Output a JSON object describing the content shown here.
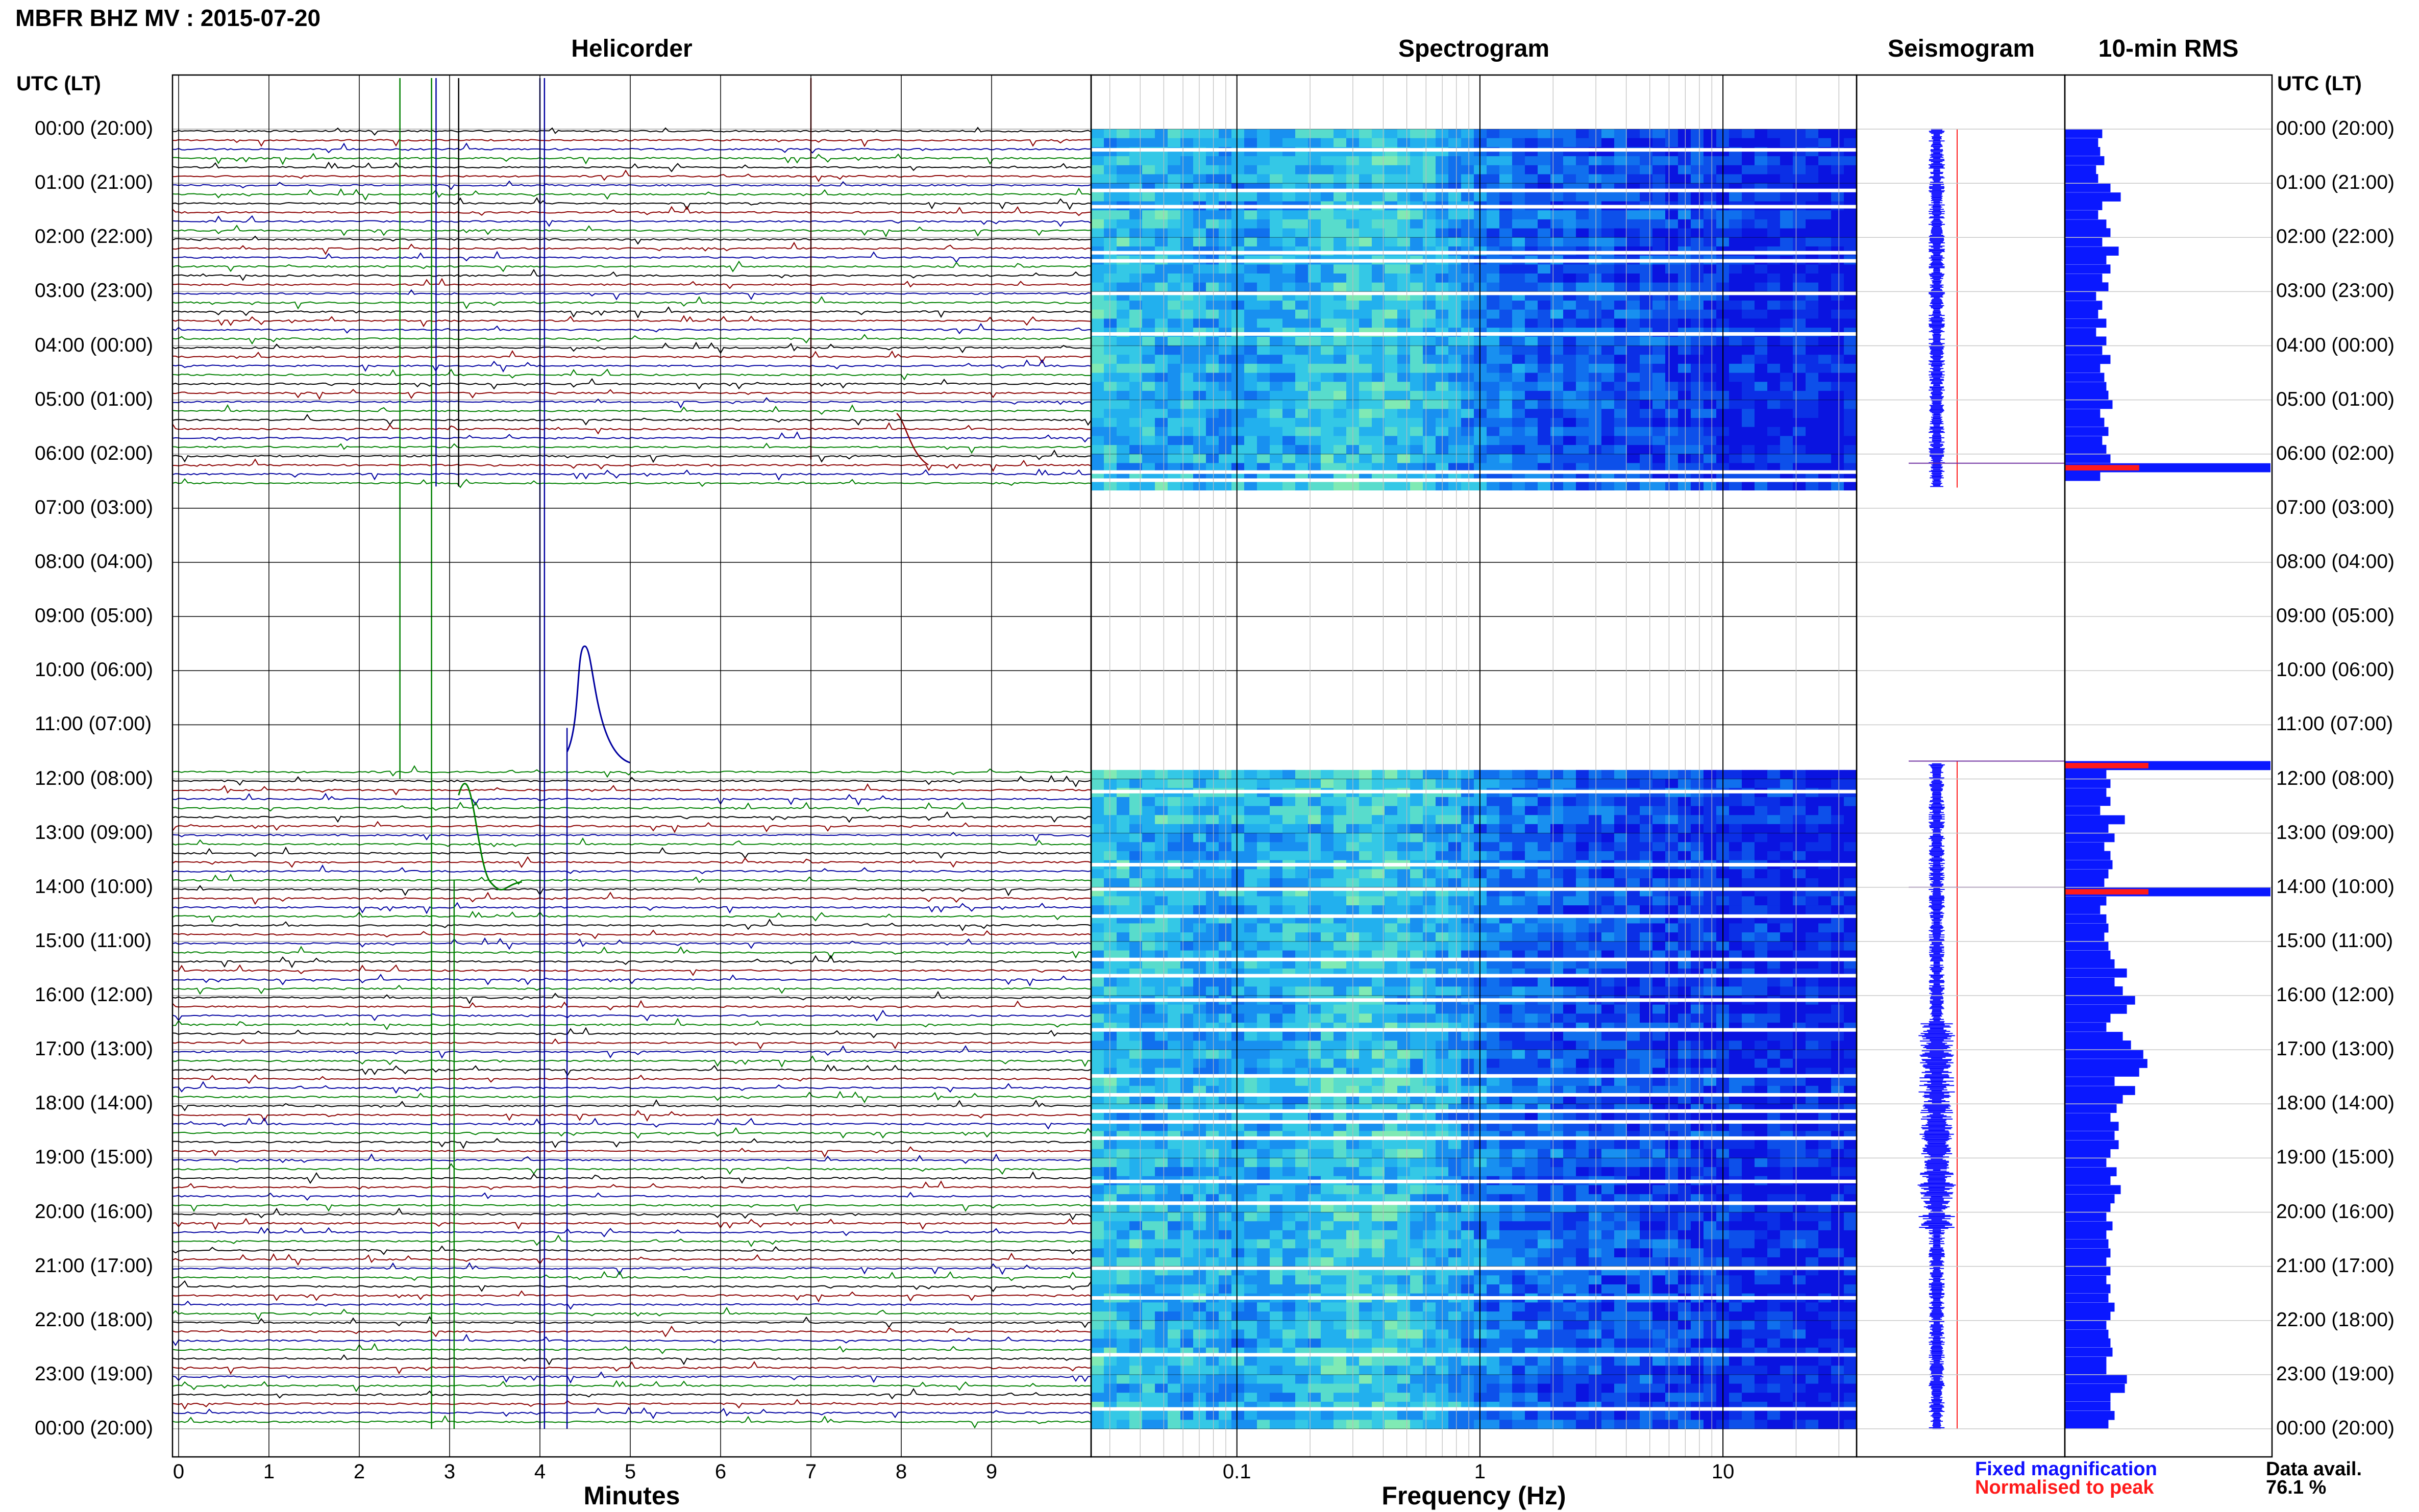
{
  "header": {
    "title": "MBFR BHZ MV : 2015-07-20",
    "utc_label_left": "UTC (LT)",
    "utc_label_right": "UTC (LT)"
  },
  "panels": {
    "helicorder": "Helicorder",
    "spectrogram": "Spectrogram",
    "seismogram": "Seismogram",
    "rms": "10-min RMS"
  },
  "time_labels": [
    "00:00 (20:00)",
    "01:00 (21:00)",
    "02:00 (22:00)",
    "03:00 (23:00)",
    "04:00 (00:00)",
    "05:00 (01:00)",
    "06:00 (02:00)",
    "07:00 (03:00)",
    "08:00 (04:00)",
    "09:00 (05:00)",
    "10:00 (06:00)",
    "11:00 (07:00)",
    "12:00 (08:00)",
    "13:00 (09:00)",
    "14:00 (10:00)",
    "15:00 (11:00)",
    "16:00 (12:00)",
    "17:00 (13:00)",
    "18:00 (14:00)",
    "19:00 (15:00)",
    "20:00 (16:00)",
    "21:00 (17:00)",
    "22:00 (18:00)",
    "23:00 (19:00)",
    "00:00 (20:00)"
  ],
  "helicorder_axis": {
    "label": "Minutes",
    "ticks": [
      "0",
      "1",
      "2",
      "3",
      "4",
      "5",
      "6",
      "7",
      "8",
      "9"
    ]
  },
  "spectrogram_axis": {
    "label": "Frequency (Hz)",
    "ticks": [
      "0.1",
      "1",
      "10"
    ],
    "scale": "log"
  },
  "legend": {
    "fixed": "Fixed magnification",
    "normalised": "Normalised to peak",
    "fixed_color": "#1010ff",
    "normalised_color": "#ff1a1a"
  },
  "availability": {
    "label": "Data avail.",
    "value": "76.1 %"
  },
  "colors": {
    "trace_cycle": [
      "#000000",
      "#8b0000",
      "#0000a0",
      "#008000"
    ],
    "rms_bar": "#0a18ff",
    "rms_peak": "#ff1a1a"
  },
  "chart_data": [
    {
      "type": "line",
      "title": "Helicorder",
      "xlabel": "Minutes",
      "xlim": [
        0,
        10
      ],
      "ylabel": "UTC (LT)",
      "ylim": [
        "00:00",
        "24:00"
      ],
      "data_gap_hours": [
        [
          6.6,
          11.7
        ]
      ]
    },
    {
      "type": "heatmap",
      "title": "Spectrogram",
      "xlabel": "Frequency (Hz)",
      "x_scale": "log",
      "data_gap_hours": [
        [
          6.6,
          11.7
        ]
      ]
    },
    {
      "type": "line",
      "title": "Seismogram",
      "data_gap_hours": [
        [
          6.6,
          11.7
        ]
      ]
    },
    {
      "type": "bar",
      "title": "10-min RMS",
      "orientation": "horizontal",
      "note_values_relative": true,
      "rms_hours": [
        0.0,
        0.17,
        0.33,
        0.5,
        0.67,
        0.83,
        1.0,
        1.17,
        1.33,
        1.5,
        1.67,
        1.83,
        2.0,
        2.17,
        2.33,
        2.5,
        2.67,
        2.83,
        3.0,
        3.17,
        3.33,
        3.5,
        3.67,
        3.83,
        4.0,
        4.17,
        4.33,
        4.5,
        4.67,
        4.83,
        5.0,
        5.17,
        5.33,
        5.5,
        5.67,
        5.83,
        6.0,
        6.17,
        6.33,
        11.67,
        11.83,
        12.0,
        12.17,
        12.33,
        12.5,
        12.67,
        12.83,
        13.0,
        13.17,
        13.33,
        13.5,
        13.67,
        13.83,
        14.0,
        14.17,
        14.33,
        14.5,
        14.67,
        14.83,
        15.0,
        15.17,
        15.33,
        15.5,
        15.67,
        15.83,
        16.0,
        16.17,
        16.33,
        16.5,
        16.67,
        16.83,
        17.0,
        17.17,
        17.33,
        17.5,
        17.67,
        17.83,
        18.0,
        18.17,
        18.33,
        18.5,
        18.67,
        18.83,
        19.0,
        19.17,
        19.33,
        19.5,
        19.67,
        19.83,
        20.0,
        20.17,
        20.33,
        20.5,
        20.67,
        20.83,
        21.0,
        21.17,
        21.33,
        21.5,
        21.67,
        21.83,
        22.0,
        22.17,
        22.33,
        22.5,
        22.67,
        22.83,
        23.0,
        23.17,
        23.33,
        23.5,
        23.67,
        23.83
      ],
      "rms_values": [
        0.18,
        0.16,
        0.17,
        0.19,
        0.15,
        0.16,
        0.22,
        0.27,
        0.18,
        0.16,
        0.2,
        0.22,
        0.18,
        0.26,
        0.2,
        0.22,
        0.18,
        0.21,
        0.15,
        0.18,
        0.16,
        0.2,
        0.15,
        0.2,
        0.18,
        0.22,
        0.17,
        0.19,
        0.2,
        0.21,
        0.23,
        0.17,
        0.19,
        0.21,
        0.18,
        0.2,
        0.22,
        1.0,
        0.17,
        1.0,
        0.2,
        0.22,
        0.2,
        0.22,
        0.17,
        0.29,
        0.21,
        0.24,
        0.19,
        0.22,
        0.23,
        0.21,
        0.19,
        1.0,
        0.2,
        0.17,
        0.2,
        0.21,
        0.19,
        0.21,
        0.22,
        0.24,
        0.3,
        0.24,
        0.28,
        0.34,
        0.3,
        0.22,
        0.2,
        0.28,
        0.32,
        0.38,
        0.4,
        0.36,
        0.24,
        0.34,
        0.28,
        0.25,
        0.22,
        0.26,
        0.24,
        0.26,
        0.22,
        0.2,
        0.25,
        0.22,
        0.27,
        0.24,
        0.22,
        0.2,
        0.23,
        0.2,
        0.21,
        0.22,
        0.2,
        0.22,
        0.2,
        0.22,
        0.21,
        0.24,
        0.22,
        0.2,
        0.21,
        0.22,
        0.23,
        0.2,
        0.2,
        0.3,
        0.29,
        0.22,
        0.22,
        0.24,
        0.21
      ],
      "peak_hours": [
        6.17,
        11.67,
        14.0
      ]
    }
  ]
}
